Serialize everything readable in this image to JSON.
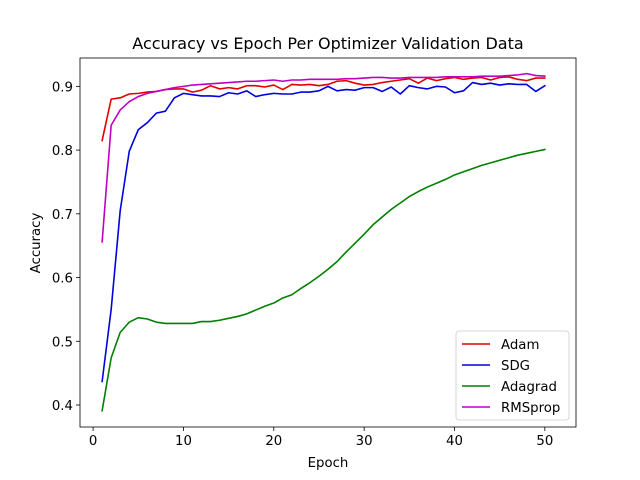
{
  "chart_data": {
    "type": "line",
    "title": "Accuracy vs Epoch Per Optimizer Validation Data",
    "xlabel": "Epoch",
    "ylabel": "Accuracy",
    "xlim": [
      -1.45,
      53.45
    ],
    "ylim": [
      0.3655,
      0.9445
    ],
    "xticks": [
      0,
      10,
      20,
      30,
      40,
      50
    ],
    "yticks": [
      0.4,
      0.5,
      0.6,
      0.7,
      0.8,
      0.9
    ],
    "ytick_labels": [
      "0.4",
      "0.5",
      "0.6",
      "0.7",
      "0.8",
      "0.9"
    ],
    "grid": false,
    "legend_position": "lower-right",
    "x": [
      1,
      2,
      3,
      4,
      5,
      6,
      7,
      8,
      9,
      10,
      11,
      12,
      13,
      14,
      15,
      16,
      17,
      18,
      19,
      20,
      21,
      22,
      23,
      24,
      25,
      26,
      27,
      28,
      29,
      30,
      31,
      32,
      33,
      34,
      35,
      36,
      37,
      38,
      39,
      40,
      41,
      42,
      43,
      44,
      45,
      46,
      47,
      48,
      49,
      50
    ],
    "series": [
      {
        "name": "Adam",
        "color": "#e00000",
        "values": [
          0.815,
          0.88,
          0.882,
          0.888,
          0.889,
          0.891,
          0.892,
          0.895,
          0.896,
          0.896,
          0.891,
          0.894,
          0.901,
          0.896,
          0.898,
          0.896,
          0.901,
          0.901,
          0.899,
          0.902,
          0.895,
          0.903,
          0.902,
          0.903,
          0.901,
          0.903,
          0.908,
          0.909,
          0.905,
          0.902,
          0.903,
          0.906,
          0.908,
          0.91,
          0.912,
          0.905,
          0.913,
          0.909,
          0.912,
          0.914,
          0.911,
          0.913,
          0.914,
          0.91,
          0.914,
          0.915,
          0.911,
          0.909,
          0.913,
          0.913
        ]
      },
      {
        "name": "SDG",
        "color": "#0000e0",
        "values": [
          0.437,
          0.55,
          0.705,
          0.798,
          0.832,
          0.843,
          0.858,
          0.861,
          0.882,
          0.889,
          0.887,
          0.885,
          0.885,
          0.884,
          0.89,
          0.888,
          0.893,
          0.884,
          0.887,
          0.889,
          0.888,
          0.888,
          0.891,
          0.891,
          0.893,
          0.9,
          0.893,
          0.895,
          0.894,
          0.898,
          0.898,
          0.892,
          0.899,
          0.888,
          0.901,
          0.898,
          0.896,
          0.9,
          0.899,
          0.89,
          0.893,
          0.906,
          0.903,
          0.905,
          0.902,
          0.904,
          0.903,
          0.903,
          0.892,
          0.901
        ]
      },
      {
        "name": "Adagrad",
        "color": "#008000",
        "values": [
          0.391,
          0.474,
          0.514,
          0.53,
          0.537,
          0.535,
          0.53,
          0.528,
          0.528,
          0.528,
          0.528,
          0.531,
          0.531,
          0.533,
          0.536,
          0.539,
          0.543,
          0.549,
          0.555,
          0.56,
          0.568,
          0.573,
          0.583,
          0.592,
          0.602,
          0.613,
          0.625,
          0.64,
          0.654,
          0.668,
          0.683,
          0.695,
          0.707,
          0.717,
          0.727,
          0.735,
          0.742,
          0.748,
          0.754,
          0.761,
          0.766,
          0.771,
          0.776,
          0.78,
          0.784,
          0.788,
          0.792,
          0.795,
          0.798,
          0.801
        ]
      },
      {
        "name": "RMSprop",
        "color": "#c000c0",
        "values": [
          0.656,
          0.839,
          0.863,
          0.876,
          0.884,
          0.889,
          0.892,
          0.895,
          0.898,
          0.9,
          0.902,
          0.903,
          0.904,
          0.905,
          0.906,
          0.907,
          0.908,
          0.908,
          0.909,
          0.91,
          0.908,
          0.91,
          0.91,
          0.911,
          0.911,
          0.911,
          0.911,
          0.912,
          0.912,
          0.913,
          0.914,
          0.914,
          0.913,
          0.913,
          0.914,
          0.914,
          0.914,
          0.914,
          0.915,
          0.915,
          0.915,
          0.915,
          0.916,
          0.916,
          0.916,
          0.917,
          0.918,
          0.92,
          0.917,
          0.916
        ]
      }
    ]
  }
}
